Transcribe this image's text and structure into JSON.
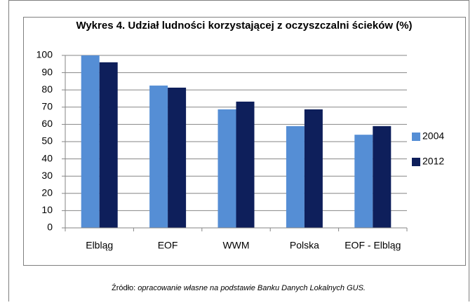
{
  "chart_data": {
    "type": "bar",
    "title": "Wykres 4. Udział ludności korzystającej z oczyszczalni ścieków (%)",
    "categories": [
      "Elbląg",
      "EOF",
      "WWM",
      "Polska",
      "EOF - Elbląg"
    ],
    "series": [
      {
        "name": "2004",
        "color": "#558ed5",
        "values": [
          100,
          82.5,
          68.7,
          59,
          54
        ]
      },
      {
        "name": "2012",
        "color": "#0e1f5b",
        "values": [
          96,
          81.3,
          73.2,
          68.7,
          59
        ]
      }
    ],
    "ylim": [
      0,
      100
    ],
    "yticks": [
      0,
      10,
      20,
      30,
      40,
      50,
      60,
      70,
      80,
      90,
      100
    ],
    "grid": true,
    "legend": "right"
  },
  "source": {
    "label": "Źródło:",
    "text": "opracowanie własne na podstawie Banku Danych Lokalnych GUS."
  }
}
